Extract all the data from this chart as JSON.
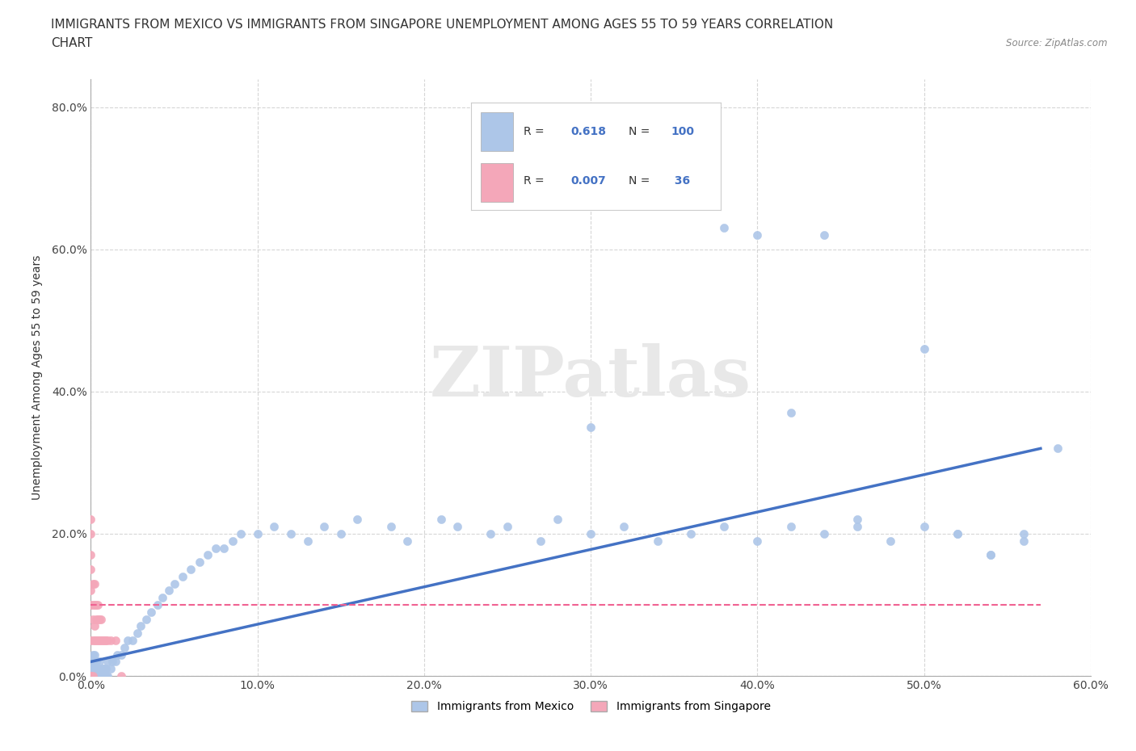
{
  "title_line1": "IMMIGRANTS FROM MEXICO VS IMMIGRANTS FROM SINGAPORE UNEMPLOYMENT AMONG AGES 55 TO 59 YEARS CORRELATION",
  "title_line2": "CHART",
  "source_text": "Source: ZipAtlas.com",
  "ylabel": "Unemployment Among Ages 55 to 59 years",
  "xlabel_mexico": "Immigrants from Mexico",
  "xlabel_singapore": "Immigrants from Singapore",
  "mexico_R": 0.618,
  "mexico_N": 100,
  "singapore_R": 0.007,
  "singapore_N": 36,
  "mexico_color": "#adc6e8",
  "singapore_color": "#f4a7b9",
  "trend_mexico_color": "#4472c4",
  "trend_singapore_color": "#f06292",
  "watermark": "ZIPatlas",
  "xmin": 0.0,
  "xmax": 0.6,
  "ymin": 0.0,
  "ymax": 0.84,
  "title_fontsize": 11,
  "axis_label_fontsize": 10,
  "tick_fontsize": 10,
  "mexico_x": [
    0.0,
    0.0,
    0.0,
    0.0,
    0.0,
    0.0,
    0.001,
    0.001,
    0.001,
    0.001,
    0.001,
    0.001,
    0.001,
    0.001,
    0.002,
    0.002,
    0.002,
    0.002,
    0.003,
    0.003,
    0.003,
    0.004,
    0.004,
    0.005,
    0.005,
    0.005,
    0.006,
    0.006,
    0.007,
    0.007,
    0.008,
    0.008,
    0.009,
    0.009,
    0.01,
    0.01,
    0.012,
    0.013,
    0.015,
    0.016,
    0.018,
    0.02,
    0.022,
    0.025,
    0.028,
    0.03,
    0.033,
    0.036,
    0.04,
    0.043,
    0.047,
    0.05,
    0.055,
    0.06,
    0.065,
    0.07,
    0.075,
    0.08,
    0.085,
    0.09,
    0.1,
    0.11,
    0.12,
    0.13,
    0.14,
    0.15,
    0.16,
    0.18,
    0.19,
    0.21,
    0.22,
    0.24,
    0.25,
    0.27,
    0.28,
    0.3,
    0.32,
    0.34,
    0.36,
    0.38,
    0.4,
    0.42,
    0.44,
    0.46,
    0.48,
    0.5,
    0.52,
    0.54,
    0.56,
    0.3,
    0.38,
    0.4,
    0.42,
    0.44,
    0.46,
    0.5,
    0.52,
    0.54,
    0.56,
    0.58
  ],
  "mexico_y": [
    0.0,
    0.0,
    0.0,
    0.01,
    0.01,
    0.02,
    0.0,
    0.0,
    0.0,
    0.01,
    0.01,
    0.02,
    0.02,
    0.03,
    0.0,
    0.01,
    0.02,
    0.03,
    0.0,
    0.01,
    0.02,
    0.0,
    0.01,
    0.0,
    0.01,
    0.02,
    0.0,
    0.01,
    0.0,
    0.01,
    0.0,
    0.01,
    0.0,
    0.01,
    0.0,
    0.02,
    0.01,
    0.02,
    0.02,
    0.03,
    0.03,
    0.04,
    0.05,
    0.05,
    0.06,
    0.07,
    0.08,
    0.09,
    0.1,
    0.11,
    0.12,
    0.13,
    0.14,
    0.15,
    0.16,
    0.17,
    0.18,
    0.18,
    0.19,
    0.2,
    0.2,
    0.21,
    0.2,
    0.19,
    0.21,
    0.2,
    0.22,
    0.21,
    0.19,
    0.22,
    0.21,
    0.2,
    0.21,
    0.19,
    0.22,
    0.2,
    0.21,
    0.19,
    0.2,
    0.21,
    0.19,
    0.21,
    0.2,
    0.22,
    0.19,
    0.21,
    0.2,
    0.17,
    0.19,
    0.35,
    0.63,
    0.62,
    0.37,
    0.62,
    0.21,
    0.46,
    0.2,
    0.17,
    0.2,
    0.32
  ],
  "singapore_x": [
    0.0,
    0.0,
    0.0,
    0.0,
    0.0,
    0.0,
    0.0,
    0.0,
    0.0,
    0.0,
    0.001,
    0.001,
    0.001,
    0.001,
    0.001,
    0.002,
    0.002,
    0.002,
    0.002,
    0.003,
    0.003,
    0.003,
    0.004,
    0.004,
    0.004,
    0.005,
    0.005,
    0.006,
    0.006,
    0.007,
    0.008,
    0.009,
    0.01,
    0.012,
    0.015,
    0.018
  ],
  "singapore_y": [
    0.0,
    0.0,
    0.0,
    0.05,
    0.1,
    0.12,
    0.15,
    0.17,
    0.2,
    0.22,
    0.0,
    0.05,
    0.08,
    0.1,
    0.13,
    0.05,
    0.07,
    0.1,
    0.13,
    0.05,
    0.08,
    0.1,
    0.05,
    0.08,
    0.1,
    0.05,
    0.08,
    0.05,
    0.08,
    0.05,
    0.05,
    0.05,
    0.05,
    0.05,
    0.05,
    0.0
  ],
  "trend_mex_x0": 0.0,
  "trend_mex_y0": 0.02,
  "trend_mex_x1": 0.57,
  "trend_mex_y1": 0.32,
  "trend_sing_x0": 0.0,
  "trend_sing_y0": 0.1,
  "trend_sing_x1": 0.57,
  "trend_sing_y1": 0.1
}
